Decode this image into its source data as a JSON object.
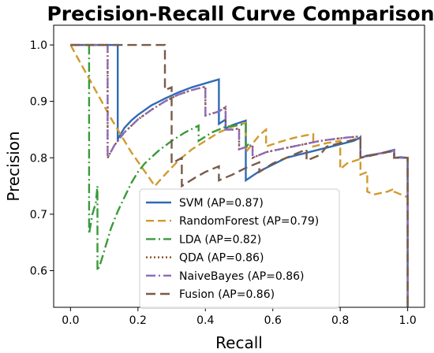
{
  "chart_data": {
    "type": "line",
    "title": "Precision-Recall Curve Comparison",
    "xlabel": "Recall",
    "ylabel": "Precision",
    "xlim": [
      -0.05,
      1.05
    ],
    "ylim": [
      0.535,
      1.035
    ],
    "xticks": [
      "0.0",
      "0.2",
      "0.4",
      "0.6",
      "0.8",
      "1.0"
    ],
    "yticks": [
      "0.6",
      "0.7",
      "0.8",
      "0.9",
      "1.0"
    ],
    "grid": false,
    "legend_position": "lower-center",
    "series": [
      {
        "name": "SVM (AP=0.87)",
        "color": "#2f6bb5",
        "dash": "solid",
        "points": [
          [
            0.0,
            1.0
          ],
          [
            0.14,
            1.0
          ],
          [
            0.14,
            0.833
          ],
          [
            0.16,
            0.853
          ],
          [
            0.18,
            0.866
          ],
          [
            0.2,
            0.876
          ],
          [
            0.24,
            0.893
          ],
          [
            0.28,
            0.905
          ],
          [
            0.32,
            0.916
          ],
          [
            0.36,
            0.925
          ],
          [
            0.4,
            0.932
          ],
          [
            0.44,
            0.939
          ],
          [
            0.44,
            0.86
          ],
          [
            0.46,
            0.868
          ],
          [
            0.46,
            0.852
          ],
          [
            0.48,
            0.858
          ],
          [
            0.5,
            0.862
          ],
          [
            0.52,
            0.866
          ],
          [
            0.52,
            0.76
          ],
          [
            0.56,
            0.776
          ],
          [
            0.6,
            0.788
          ],
          [
            0.64,
            0.8
          ],
          [
            0.68,
            0.806
          ],
          [
            0.72,
            0.812
          ],
          [
            0.76,
            0.818
          ],
          [
            0.8,
            0.824
          ],
          [
            0.84,
            0.83
          ],
          [
            0.86,
            0.836
          ],
          [
            0.86,
            0.8
          ],
          [
            0.88,
            0.804
          ],
          [
            0.92,
            0.808
          ],
          [
            0.96,
            0.814
          ],
          [
            0.96,
            0.8
          ],
          [
            0.98,
            0.801
          ],
          [
            1.0,
            0.8
          ],
          [
            1.0,
            0.535
          ]
        ]
      },
      {
        "name": "RandomForest (AP=0.79)",
        "color": "#d19a2e",
        "dash": "10,5",
        "points": [
          [
            0.0,
            1.0
          ],
          [
            0.06,
            0.935
          ],
          [
            0.12,
            0.87
          ],
          [
            0.18,
            0.81
          ],
          [
            0.22,
            0.776
          ],
          [
            0.25,
            0.75
          ],
          [
            0.28,
            0.77
          ],
          [
            0.32,
            0.795
          ],
          [
            0.36,
            0.815
          ],
          [
            0.4,
            0.83
          ],
          [
            0.44,
            0.845
          ],
          [
            0.48,
            0.855
          ],
          [
            0.52,
            0.862
          ],
          [
            0.52,
            0.81
          ],
          [
            0.56,
            0.84
          ],
          [
            0.58,
            0.85
          ],
          [
            0.58,
            0.82
          ],
          [
            0.62,
            0.828
          ],
          [
            0.66,
            0.835
          ],
          [
            0.7,
            0.84
          ],
          [
            0.72,
            0.842
          ],
          [
            0.72,
            0.82
          ],
          [
            0.76,
            0.826
          ],
          [
            0.8,
            0.83
          ],
          [
            0.8,
            0.78
          ],
          [
            0.82,
            0.79
          ],
          [
            0.86,
            0.798
          ],
          [
            0.86,
            0.77
          ],
          [
            0.88,
            0.775
          ],
          [
            0.88,
            0.74
          ],
          [
            0.9,
            0.735
          ],
          [
            0.94,
            0.74
          ],
          [
            0.96,
            0.745
          ],
          [
            0.96,
            0.74
          ],
          [
            0.98,
            0.735
          ],
          [
            1.0,
            0.73
          ]
        ]
      },
      {
        "name": "LDA (AP=0.82)",
        "color": "#3a9a3a",
        "dash": "12,4,2,4",
        "points": [
          [
            0.055,
            1.0
          ],
          [
            0.055,
            0.665
          ],
          [
            0.065,
            0.7
          ],
          [
            0.075,
            0.72
          ],
          [
            0.08,
            0.75
          ],
          [
            0.08,
            0.6
          ],
          [
            0.09,
            0.615
          ],
          [
            0.1,
            0.635
          ],
          [
            0.12,
            0.675
          ],
          [
            0.14,
            0.705
          ],
          [
            0.16,
            0.73
          ],
          [
            0.18,
            0.755
          ],
          [
            0.2,
            0.775
          ],
          [
            0.22,
            0.79
          ],
          [
            0.26,
            0.812
          ],
          [
            0.3,
            0.83
          ],
          [
            0.34,
            0.845
          ],
          [
            0.38,
            0.857
          ],
          [
            0.38,
            0.83
          ],
          [
            0.42,
            0.845
          ],
          [
            0.46,
            0.855
          ],
          [
            0.5,
            0.858
          ],
          [
            0.52,
            0.86
          ],
          [
            0.52,
            0.82
          ],
          [
            0.53,
            0.825
          ]
        ]
      },
      {
        "name": "QDA (AP=0.86)",
        "color": "#8a4b22",
        "dash": "2,3",
        "points": [
          [
            0.0,
            1.0
          ],
          [
            0.11,
            1.0
          ],
          [
            0.11,
            0.8
          ],
          [
            0.13,
            0.822
          ],
          [
            0.16,
            0.845
          ],
          [
            0.2,
            0.868
          ],
          [
            0.24,
            0.885
          ],
          [
            0.28,
            0.9
          ],
          [
            0.32,
            0.912
          ],
          [
            0.36,
            0.92
          ],
          [
            0.4,
            0.926
          ],
          [
            0.4,
            0.875
          ],
          [
            0.44,
            0.882
          ],
          [
            0.46,
            0.89
          ],
          [
            0.46,
            0.85
          ],
          [
            0.48,
            0.85
          ],
          [
            0.5,
            0.852
          ],
          [
            0.5,
            0.815
          ],
          [
            0.54,
            0.823
          ],
          [
            0.54,
            0.8
          ],
          [
            0.58,
            0.81
          ],
          [
            0.62,
            0.815
          ],
          [
            0.66,
            0.82
          ],
          [
            0.7,
            0.825
          ],
          [
            0.74,
            0.83
          ],
          [
            0.78,
            0.833
          ],
          [
            0.82,
            0.836
          ],
          [
            0.86,
            0.838
          ],
          [
            0.86,
            0.8
          ],
          [
            0.9,
            0.806
          ],
          [
            0.94,
            0.81
          ],
          [
            0.96,
            0.813
          ],
          [
            0.96,
            0.8
          ],
          [
            0.98,
            0.8
          ],
          [
            1.0,
            0.8
          ],
          [
            1.0,
            0.535
          ]
        ]
      },
      {
        "name": "NaiveBayes (AP=0.86)",
        "color": "#8c6bb8",
        "dash": "12,4,2,4",
        "points": [
          [
            0.0,
            1.0
          ],
          [
            0.11,
            1.0
          ],
          [
            0.11,
            0.8
          ],
          [
            0.13,
            0.822
          ],
          [
            0.16,
            0.845
          ],
          [
            0.2,
            0.868
          ],
          [
            0.24,
            0.885
          ],
          [
            0.28,
            0.9
          ],
          [
            0.32,
            0.912
          ],
          [
            0.36,
            0.92
          ],
          [
            0.4,
            0.926
          ],
          [
            0.4,
            0.875
          ],
          [
            0.44,
            0.882
          ],
          [
            0.46,
            0.89
          ],
          [
            0.46,
            0.85
          ],
          [
            0.48,
            0.85
          ],
          [
            0.5,
            0.852
          ],
          [
            0.5,
            0.815
          ],
          [
            0.54,
            0.823
          ],
          [
            0.54,
            0.8
          ],
          [
            0.58,
            0.81
          ],
          [
            0.62,
            0.815
          ],
          [
            0.66,
            0.82
          ],
          [
            0.7,
            0.825
          ],
          [
            0.74,
            0.83
          ],
          [
            0.78,
            0.833
          ],
          [
            0.82,
            0.836
          ],
          [
            0.86,
            0.838
          ],
          [
            0.86,
            0.8
          ],
          [
            0.9,
            0.806
          ],
          [
            0.94,
            0.81
          ],
          [
            0.96,
            0.813
          ],
          [
            0.96,
            0.8
          ],
          [
            0.98,
            0.8
          ],
          [
            1.0,
            0.8
          ],
          [
            1.0,
            0.535
          ]
        ]
      },
      {
        "name": "Fusion (AP=0.86)",
        "color": "#7a5a48",
        "dash": "12,6",
        "points": [
          [
            0.0,
            1.0
          ],
          [
            0.28,
            1.0
          ],
          [
            0.28,
            0.92
          ],
          [
            0.3,
            0.925
          ],
          [
            0.3,
            0.79
          ],
          [
            0.33,
            0.8
          ],
          [
            0.33,
            0.75
          ],
          [
            0.37,
            0.765
          ],
          [
            0.4,
            0.775
          ],
          [
            0.44,
            0.785
          ],
          [
            0.44,
            0.76
          ],
          [
            0.48,
            0.77
          ],
          [
            0.52,
            0.782
          ],
          [
            0.56,
            0.792
          ],
          [
            0.56,
            0.775
          ],
          [
            0.6,
            0.79
          ],
          [
            0.64,
            0.8
          ],
          [
            0.68,
            0.81
          ],
          [
            0.7,
            0.815
          ],
          [
            0.7,
            0.795
          ],
          [
            0.74,
            0.805
          ],
          [
            0.76,
            0.82
          ],
          [
            0.8,
            0.826
          ],
          [
            0.84,
            0.832
          ],
          [
            0.86,
            0.836
          ],
          [
            0.86,
            0.8
          ],
          [
            0.9,
            0.805
          ],
          [
            0.94,
            0.81
          ],
          [
            0.96,
            0.812
          ],
          [
            0.96,
            0.8
          ],
          [
            0.98,
            0.8
          ],
          [
            1.0,
            0.8
          ],
          [
            1.0,
            0.535
          ]
        ]
      }
    ]
  }
}
